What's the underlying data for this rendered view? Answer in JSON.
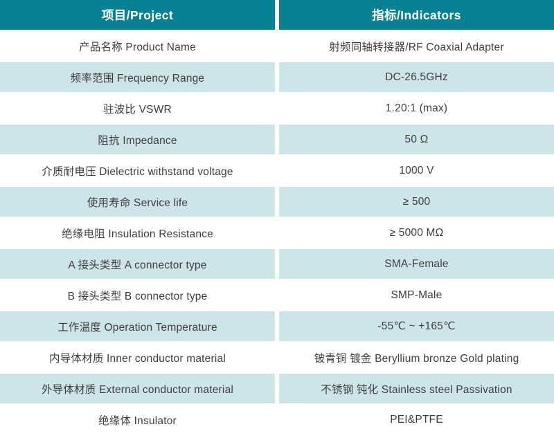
{
  "colors": {
    "header_bg": "#088293",
    "header_text": "#ffffff",
    "row_alt_bg": "#cde5e9",
    "row_bg": "#ffffff",
    "body_text": "#3d3d3d"
  },
  "table": {
    "header": {
      "project": "项目/Project",
      "indicators": "指标/Indicators"
    },
    "rows": [
      {
        "project": "产品名称 Product Name",
        "indicator": "射频同轴转接器/RF Coaxial Adapter"
      },
      {
        "project": "频率范围 Frequency Range",
        "indicator": "DC-26.5GHz"
      },
      {
        "project": "驻波比 VSWR",
        "indicator": "1.20:1 (max)"
      },
      {
        "project": "阻抗 Impedance",
        "indicator": "50 Ω"
      },
      {
        "project": "介质耐电压 Dielectric withstand voltage",
        "indicator": "1000 V"
      },
      {
        "project": "使用寿命 Service life",
        "indicator": "≥ 500"
      },
      {
        "project": "绝缘电阻 Insulation Resistance",
        "indicator": "≥ 5000 MΩ"
      },
      {
        "project": "A 接头类型  A connector type",
        "indicator": "SMA-Female"
      },
      {
        "project": "B 接头类型  B connector type",
        "indicator": "SMP-Male"
      },
      {
        "project": "工作温度 Operation Temperature",
        "indicator": "-55℃ ~ +165℃"
      },
      {
        "project": "内导体材质 Inner conductor material",
        "indicator": "铍青铜 镀金 Beryllium bronze Gold plating"
      },
      {
        "project": "外导体材质 External conductor material",
        "indicator": "不锈钢 钝化 Stainless steel Passivation"
      },
      {
        "project": "绝缘体 Insulator",
        "indicator": "PEI&PTFE"
      }
    ]
  }
}
